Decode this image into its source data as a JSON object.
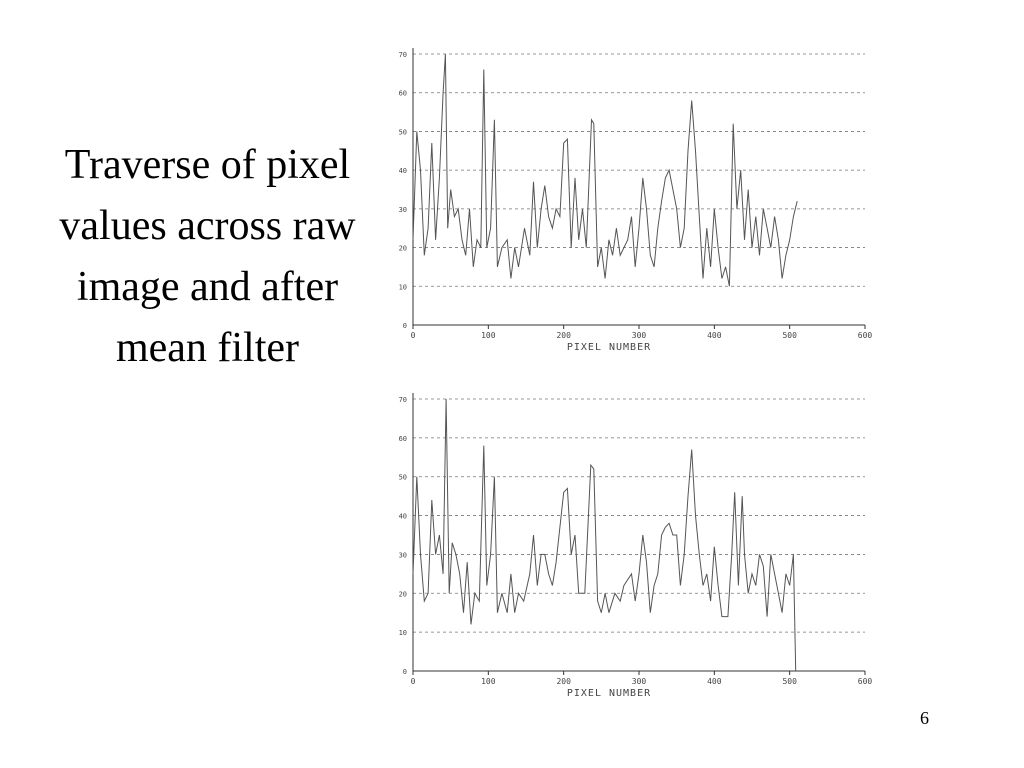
{
  "slide": {
    "title_lines": [
      "Traverse of pixel",
      "values across raw",
      "image and after",
      "mean filter"
    ],
    "number": "6"
  },
  "chart_data": [
    {
      "type": "line",
      "xlabel": "PIXEL NUMBER",
      "xlim": [
        0,
        600
      ],
      "xticks": [
        0,
        100,
        200,
        300,
        400,
        500,
        600
      ],
      "ylim": [
        0,
        70
      ],
      "yticks": [
        0,
        10,
        20,
        30,
        40,
        50,
        60,
        70
      ],
      "grid": true,
      "color": "#555555",
      "x": [
        0,
        5,
        10,
        15,
        20,
        25,
        30,
        35,
        40,
        43,
        46,
        50,
        55,
        60,
        65,
        70,
        75,
        80,
        85,
        90,
        94,
        98,
        103,
        108,
        112,
        118,
        125,
        130,
        135,
        140,
        148,
        155,
        160,
        165,
        170,
        175,
        180,
        185,
        190,
        195,
        200,
        205,
        210,
        215,
        220,
        225,
        230,
        237,
        240,
        245,
        250,
        255,
        260,
        265,
        270,
        275,
        280,
        285,
        290,
        295,
        300,
        305,
        310,
        315,
        320,
        325,
        330,
        335,
        340,
        345,
        350,
        355,
        360,
        365,
        370,
        375,
        380,
        385,
        390,
        395,
        400,
        405,
        410,
        415,
        420,
        425,
        430,
        435,
        440,
        445,
        450,
        455,
        460,
        465,
        470,
        475,
        480,
        485,
        490,
        495,
        500,
        505,
        510
      ],
      "values": [
        22,
        50,
        40,
        18,
        25,
        47,
        22,
        38,
        60,
        70,
        25,
        35,
        28,
        30,
        22,
        18,
        30,
        15,
        22,
        20,
        66,
        20,
        25,
        53,
        15,
        20,
        22,
        12,
        20,
        15,
        25,
        18,
        37,
        20,
        30,
        36,
        28,
        25,
        30,
        28,
        47,
        48,
        20,
        38,
        22,
        30,
        20,
        53,
        52,
        15,
        20,
        12,
        22,
        18,
        25,
        18,
        20,
        22,
        28,
        15,
        25,
        38,
        30,
        18,
        15,
        25,
        32,
        38,
        40,
        35,
        30,
        20,
        25,
        45,
        58,
        45,
        28,
        12,
        25,
        15,
        30,
        20,
        12,
        15,
        10,
        52,
        30,
        40,
        22,
        35,
        20,
        28,
        18,
        30,
        25,
        20,
        28,
        22,
        12,
        18,
        22,
        28,
        32
      ]
    },
    {
      "type": "line",
      "xlabel": "PIXEL NUMBER",
      "xlim": [
        0,
        600
      ],
      "xticks": [
        0,
        100,
        200,
        300,
        400,
        500,
        600
      ],
      "ylim": [
        0,
        70
      ],
      "yticks": [
        0,
        10,
        20,
        30,
        40,
        50,
        60,
        70
      ],
      "grid": true,
      "color": "#555555",
      "x": [
        0,
        5,
        10,
        15,
        20,
        25,
        30,
        35,
        40,
        44,
        48,
        52,
        57,
        62,
        67,
        72,
        77,
        82,
        88,
        94,
        98,
        103,
        108,
        112,
        118,
        125,
        130,
        135,
        140,
        147,
        155,
        160,
        165,
        170,
        175,
        180,
        185,
        190,
        200,
        205,
        210,
        215,
        220,
        228,
        236,
        240,
        245,
        250,
        255,
        260,
        268,
        275,
        280,
        290,
        295,
        300,
        305,
        310,
        315,
        320,
        325,
        330,
        335,
        340,
        345,
        350,
        355,
        360,
        365,
        370,
        375,
        380,
        385,
        390,
        395,
        400,
        405,
        410,
        418,
        423,
        427,
        432,
        437,
        440,
        445,
        450,
        455,
        460,
        465,
        470,
        475,
        480,
        485,
        490,
        495,
        500,
        505,
        508
      ],
      "values": [
        25,
        50,
        30,
        18,
        20,
        44,
        30,
        35,
        25,
        70,
        20,
        33,
        30,
        25,
        15,
        28,
        12,
        20,
        18,
        58,
        22,
        30,
        50,
        15,
        20,
        15,
        25,
        15,
        20,
        18,
        25,
        35,
        22,
        30,
        30,
        25,
        22,
        28,
        46,
        47,
        30,
        35,
        20,
        20,
        53,
        52,
        18,
        15,
        20,
        15,
        20,
        18,
        22,
        25,
        18,
        25,
        35,
        28,
        15,
        22,
        25,
        35,
        37,
        38,
        35,
        35,
        22,
        30,
        45,
        57,
        40,
        30,
        22,
        25,
        18,
        32,
        22,
        14,
        14,
        30,
        46,
        22,
        45,
        30,
        20,
        25,
        22,
        30,
        27,
        14,
        30,
        25,
        20,
        15,
        25,
        22,
        30,
        0
      ]
    }
  ]
}
